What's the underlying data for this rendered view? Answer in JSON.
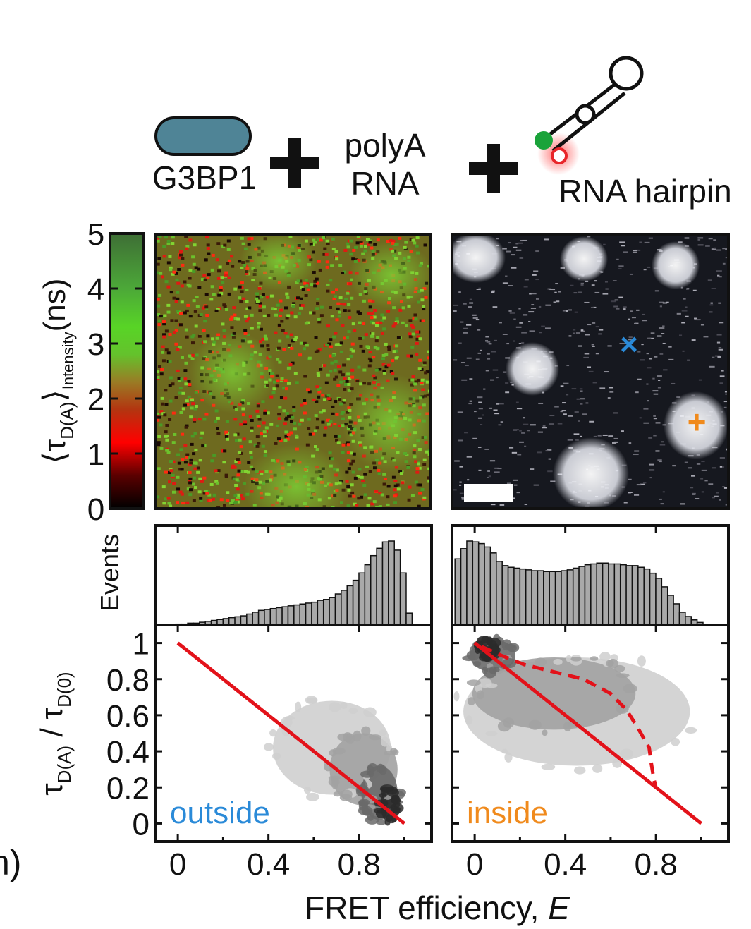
{
  "header": {
    "protein_label": "G3BP1",
    "rna_label_line1": "polyA",
    "rna_label_line2": "RNA",
    "hairpin_label": "RNA hairpin",
    "plus_sign": "+"
  },
  "colors": {
    "protein_fill": "#4f8496",
    "donor_dot": "#1aa33a",
    "acceptor_ring": "#e8262a",
    "outside_accent": "#2a8ad8",
    "inside_accent": "#f08a1c",
    "red_line": "#e3121a",
    "bar_fill": "#a9a9a9"
  },
  "colorbar": {
    "ticks": [
      "0",
      "1",
      "2",
      "3",
      "4",
      "5"
    ],
    "label_main": "⟨τ",
    "label_sub_da": "D(A)",
    "label_bracket": "⟩",
    "label_sub_int": "Intensity",
    "label_unit": "(ns)"
  },
  "images": {
    "left_map_name": "lifetime map",
    "right_map_name": "intensity image",
    "outside_marker": "×",
    "inside_marker": "+"
  },
  "histogram": {
    "ylabel": "Events"
  },
  "axes": {
    "x_ticks": [
      "0",
      "0.4",
      "0.8"
    ],
    "y_ticks": [
      "1",
      "0.8",
      "0.6",
      "0.4",
      "0.2",
      "0"
    ],
    "xlabel_main": "FRET efficiency, ",
    "xlabel_italic": "E",
    "ylabel_tau": "τ",
    "ylabel_da": "D(A)",
    "ylabel_slash": " / τ",
    "ylabel_d0": "D(0)"
  },
  "panel_mark": "h)",
  "chart_data": [
    {
      "type": "bar",
      "name": "outside histogram",
      "x": [
        0.05,
        0.075,
        0.1,
        0.125,
        0.15,
        0.175,
        0.2,
        0.225,
        0.25,
        0.275,
        0.3,
        0.325,
        0.35,
        0.375,
        0.4,
        0.425,
        0.45,
        0.475,
        0.5,
        0.525,
        0.55,
        0.575,
        0.6,
        0.625,
        0.65,
        0.675,
        0.7,
        0.725,
        0.75,
        0.775,
        0.8,
        0.825,
        0.85,
        0.875,
        0.9,
        0.925,
        0.95,
        0.975,
        1.0,
        1.025
      ],
      "values": [
        1,
        1,
        2,
        2,
        3,
        4,
        5,
        6,
        7,
        8,
        9,
        10,
        12,
        14,
        16,
        17,
        18,
        19,
        20,
        21,
        22,
        23,
        24,
        25,
        27,
        28,
        30,
        34,
        38,
        43,
        49,
        57,
        66,
        76,
        84,
        91,
        92,
        82,
        57,
        13
      ],
      "xlim": [
        -0.05,
        1.12
      ],
      "ylabel": "Events"
    },
    {
      "type": "bar",
      "name": "inside histogram",
      "x": [
        -0.025,
        0.0,
        0.025,
        0.05,
        0.075,
        0.1,
        0.125,
        0.15,
        0.175,
        0.2,
        0.225,
        0.25,
        0.275,
        0.3,
        0.325,
        0.35,
        0.375,
        0.4,
        0.425,
        0.45,
        0.475,
        0.5,
        0.525,
        0.55,
        0.575,
        0.6,
        0.625,
        0.65,
        0.675,
        0.7,
        0.725,
        0.75,
        0.775,
        0.8,
        0.825,
        0.85,
        0.875,
        0.9,
        0.925,
        0.95,
        0.975,
        1.0
      ],
      "values": [
        78,
        90,
        99,
        98,
        96,
        92,
        85,
        75,
        70,
        68,
        67,
        66,
        65,
        64,
        64,
        63,
        63,
        63,
        64,
        65,
        67,
        69,
        71,
        72,
        73,
        73,
        72,
        72,
        71,
        70,
        70,
        68,
        66,
        61,
        55,
        45,
        35,
        25,
        15,
        10,
        6,
        3
      ],
      "xlim": [
        -0.05,
        1.12
      ]
    },
    {
      "type": "scatter",
      "name": "outside 2D histogram",
      "label": "outside",
      "x_ticks": [
        0,
        0.4,
        0.8
      ],
      "y_ticks": [
        0,
        0.2,
        0.4,
        0.6,
        0.8,
        1
      ],
      "xlim": [
        -0.1,
        1.12
      ],
      "ylim": [
        -0.1,
        1.1
      ],
      "static_line": {
        "x": [
          0,
          1
        ],
        "y": [
          1,
          0
        ]
      },
      "density_blobs": [
        {
          "cx": 0.68,
          "cy": 0.42,
          "rx": 0.26,
          "ry": 0.26,
          "level": 1
        },
        {
          "cx": 0.82,
          "cy": 0.3,
          "rx": 0.15,
          "ry": 0.2,
          "level": 2
        },
        {
          "cx": 0.89,
          "cy": 0.17,
          "rx": 0.08,
          "ry": 0.15,
          "level": 3
        },
        {
          "cx": 0.93,
          "cy": 0.1,
          "rx": 0.035,
          "ry": 0.09,
          "level": 4
        }
      ],
      "xlabel": "FRET efficiency, E",
      "ylabel": "τD(A) / τD(0)"
    },
    {
      "type": "scatter",
      "name": "inside 2D histogram",
      "label": "inside",
      "x_ticks": [
        0,
        0.4,
        0.8
      ],
      "y_ticks": [
        0,
        0.2,
        0.4,
        0.6,
        0.8,
        1
      ],
      "xlim": [
        -0.1,
        1.12
      ],
      "ylim": [
        -0.1,
        1.1
      ],
      "static_line": {
        "x": [
          0,
          1
        ],
        "y": [
          1,
          0
        ]
      },
      "dynamic_line": {
        "x": [
          0.03,
          0.12,
          0.22,
          0.35,
          0.48,
          0.6,
          0.67,
          0.72,
          0.77,
          0.78,
          0.79,
          0.8
        ],
        "y": [
          0.98,
          0.93,
          0.88,
          0.84,
          0.8,
          0.72,
          0.63,
          0.53,
          0.42,
          0.33,
          0.25,
          0.2
        ]
      },
      "density_blobs": [
        {
          "cx": 0.45,
          "cy": 0.62,
          "rx": 0.5,
          "ry": 0.3,
          "level": 1
        },
        {
          "cx": 0.35,
          "cy": 0.72,
          "rx": 0.36,
          "ry": 0.2,
          "level": 2
        },
        {
          "cx": 0.08,
          "cy": 0.93,
          "rx": 0.1,
          "ry": 0.09,
          "level": 3
        },
        {
          "cx": 0.05,
          "cy": 0.97,
          "rx": 0.04,
          "ry": 0.05,
          "level": 4
        }
      ]
    }
  ]
}
